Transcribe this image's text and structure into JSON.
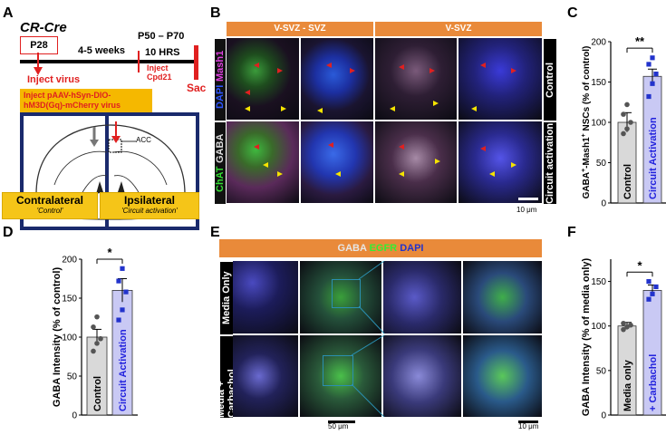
{
  "panels": {
    "A": "A",
    "B": "B",
    "C": "C",
    "D": "D",
    "E": "E",
    "F": "F"
  },
  "panelA": {
    "title": "CR-Cre",
    "age_start": "P28",
    "duration": "4-5 weeks",
    "age_end": "P50 – P70",
    "hrs": "10 HRS",
    "inject_virus": "Inject virus",
    "inject_cpd": "Inject\nCpd21",
    "sac": "Sac",
    "construct": "Inject pAAV-hSyn-DIO-\nhM3D(Gq)-mCherry virus",
    "acc": "ACC",
    "contra_title": "Contralateral",
    "contra_sub": "'Control'",
    "ipsi_title": "Ipsilateral",
    "ipsi_sub": "'Circuit activation'"
  },
  "panelB": {
    "header_left": "V-SVZ - SVZ",
    "header_right": "V-SVZ",
    "stain_dapi": "DAPI",
    "stain_mash1": "Mash1",
    "stain_gaba": "GABA",
    "stain_chat": "ChAT",
    "row1": "Control",
    "row2": "Circuit activation",
    "scale": "10 μm"
  },
  "panelE": {
    "header_gaba": "GABA",
    "header_egfr": "EGFR",
    "header_dapi": "DAPI",
    "row1": "Media Only",
    "row2": "Media + Carbachol",
    "scale1": "50 μm",
    "scale2": "10 μm"
  },
  "colors": {
    "orange": "#e98a3a",
    "gray_bar": "#d9d9d9",
    "blue_bar": "#c9c9f4",
    "blue_text": "#2222dd",
    "blue_dot": "#2233cc",
    "navy": "#1a2a6c",
    "yellow_box": "#f5c518",
    "red": "#e02020"
  },
  "chart_data": [
    {
      "id": "C",
      "type": "bar",
      "categories": [
        "Control",
        "Circuit Activation"
      ],
      "values": [
        100,
        157
      ],
      "errors": [
        12,
        9
      ],
      "points": [
        [
          86,
          92,
          100,
          110,
          122
        ],
        [
          132,
          148,
          160,
          172,
          180
        ]
      ],
      "ylabel": "GABA+-Mash1+ NSCs (% of control)",
      "ylabel_main": "GABA",
      "ylabel_sup1": "+",
      "ylabel_mid": "-Mash1",
      "ylabel_sup2": "+",
      "ylabel_end": " NSCs (% of control)",
      "ylim": [
        0,
        200
      ],
      "yticks": [
        "0",
        "50",
        "100",
        "150",
        "200"
      ],
      "significance": "**"
    },
    {
      "id": "D",
      "type": "bar",
      "categories": [
        "Control",
        "Circuit Activation"
      ],
      "values": [
        100,
        160
      ],
      "errors": [
        10,
        15
      ],
      "points": [
        [
          82,
          92,
          98,
          113,
          126
        ],
        [
          122,
          135,
          158,
          172,
          188
        ]
      ],
      "ylabel": "GABA Intensity (% of control)",
      "ylim": [
        0,
        200
      ],
      "yticks": [
        "0",
        "50",
        "100",
        "150",
        "200"
      ],
      "significance": "*"
    },
    {
      "id": "F",
      "type": "bar",
      "categories": [
        "Media only",
        "+ Carbachol"
      ],
      "values": [
        100,
        140
      ],
      "errors": [
        4,
        6
      ],
      "points": [
        [
          96,
          99,
          101,
          103
        ],
        [
          130,
          136,
          144,
          150
        ]
      ],
      "ylabel": "GABA Intensity (% of media only)",
      "ylim": [
        0,
        175
      ],
      "yticks": [
        "0",
        "50",
        "100",
        "150"
      ],
      "significance": "*"
    }
  ]
}
